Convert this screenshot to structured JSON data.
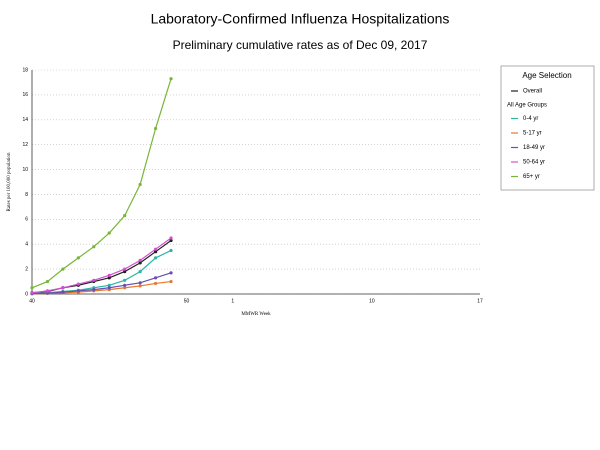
{
  "chart_data": {
    "type": "line",
    "title": "Laboratory-Confirmed Influenza Hospitalizations",
    "subtitle": "Preliminary cumulative rates as of Dec 09, 2017",
    "y_label": "Rates per 100,000 population",
    "x_label": "MMWR Week",
    "legend_title": "Age Selection",
    "legend_group_label": "All Age Groups",
    "categories": [
      "40",
      null,
      null,
      null,
      null,
      null,
      null,
      null,
      null,
      null,
      "50",
      null,
      null,
      "1",
      null,
      null,
      null,
      null,
      null,
      null,
      null,
      null,
      "10",
      null,
      null,
      null,
      null,
      null,
      null,
      "17"
    ],
    "ylim": [
      0,
      18
    ],
    "yticks": [
      0,
      2,
      4,
      6,
      8,
      10,
      12,
      14,
      16,
      18
    ],
    "grid": true,
    "series": [
      {
        "name": "Overall",
        "color": "#222222",
        "values": [
          0.1,
          0.2,
          0.5,
          0.7,
          1.0,
          1.3,
          1.8,
          2.5,
          3.4,
          4.3,
          null,
          null,
          null,
          null,
          null,
          null,
          null,
          null,
          null,
          null,
          null,
          null,
          null,
          null,
          null,
          null,
          null,
          null,
          null,
          null
        ]
      },
      {
        "name": "0-4 yr",
        "color": "#2ab5a8",
        "values": [
          0.05,
          0.1,
          0.2,
          0.3,
          0.5,
          0.7,
          1.1,
          1.8,
          2.9,
          3.5,
          null,
          null,
          null,
          null,
          null,
          null,
          null,
          null,
          null,
          null,
          null,
          null,
          null,
          null,
          null,
          null,
          null,
          null,
          null,
          null
        ]
      },
      {
        "name": "5-17 yr",
        "color": "#e8772e",
        "values": [
          0.02,
          0.05,
          0.1,
          0.15,
          0.25,
          0.35,
          0.5,
          0.65,
          0.85,
          1.0,
          null,
          null,
          null,
          null,
          null,
          null,
          null,
          null,
          null,
          null,
          null,
          null,
          null,
          null,
          null,
          null,
          null,
          null,
          null,
          null
        ]
      },
      {
        "name": "18-49 yr",
        "color": "#6a4fb0",
        "values": [
          0.03,
          0.07,
          0.15,
          0.25,
          0.35,
          0.5,
          0.7,
          0.9,
          1.3,
          1.7,
          null,
          null,
          null,
          null,
          null,
          null,
          null,
          null,
          null,
          null,
          null,
          null,
          null,
          null,
          null,
          null,
          null,
          null,
          null,
          null
        ]
      },
      {
        "name": "50-64 yr",
        "color": "#d44fd0",
        "values": [
          0.1,
          0.25,
          0.5,
          0.8,
          1.1,
          1.5,
          2.0,
          2.7,
          3.6,
          4.5,
          null,
          null,
          null,
          null,
          null,
          null,
          null,
          null,
          null,
          null,
          null,
          null,
          null,
          null,
          null,
          null,
          null,
          null,
          null,
          null
        ]
      },
      {
        "name": "65+ yr",
        "color": "#77b538",
        "values": [
          0.5,
          1.0,
          2.0,
          2.9,
          3.8,
          4.9,
          6.3,
          8.8,
          13.3,
          17.3,
          null,
          null,
          null,
          null,
          null,
          null,
          null,
          null,
          null,
          null,
          null,
          null,
          null,
          null,
          null,
          null,
          null,
          null,
          null,
          null
        ]
      }
    ]
  }
}
